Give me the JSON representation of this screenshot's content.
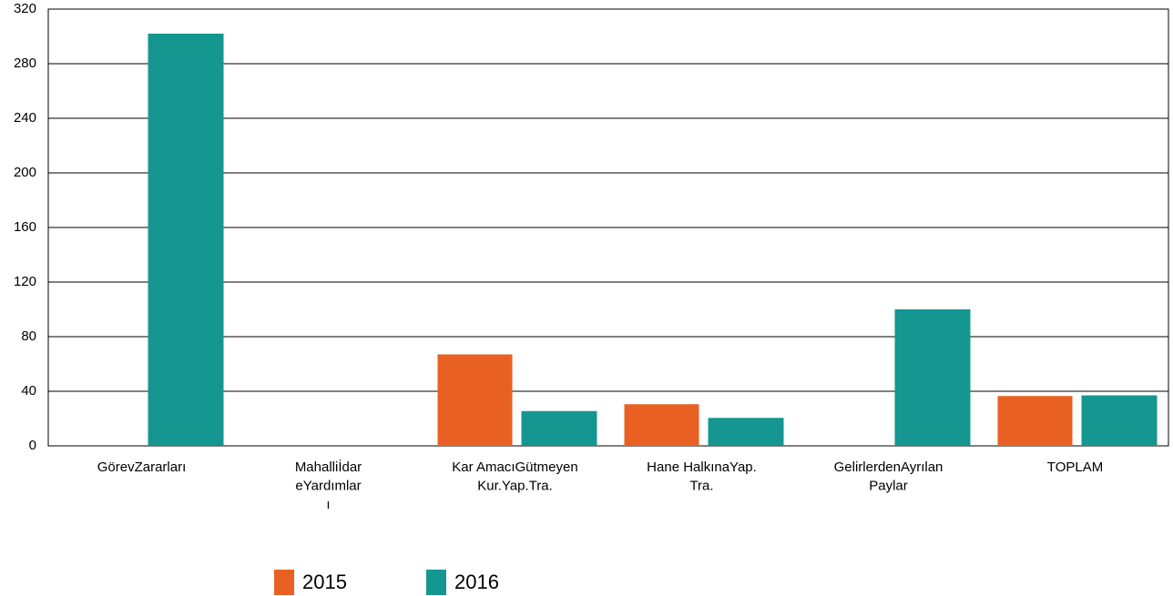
{
  "chart_data": {
    "type": "bar",
    "categories": [
      "GörevZararları",
      "Mahalliİdar\neYardımlar\nı",
      "Kar AmacıGütmeyen\nKur.Yap.Tra.",
      "Hane HalkınaYap.\nTra.",
      "GelirlerdenAyrılan\nPaylar",
      "TOPLAM"
    ],
    "series": [
      {
        "name": "2015",
        "color": "#e86123",
        "values": [
          0,
          0,
          67,
          30.5,
          0,
          36.5
        ]
      },
      {
        "name": "2016",
        "color": "#159690",
        "values": [
          302,
          0,
          25.5,
          20.5,
          100,
          37
        ]
      }
    ],
    "ylim": [
      0,
      320
    ],
    "yticks": [
      0,
      40,
      80,
      120,
      160,
      200,
      240,
      280,
      320
    ],
    "grid": true,
    "legend": "bottom"
  }
}
